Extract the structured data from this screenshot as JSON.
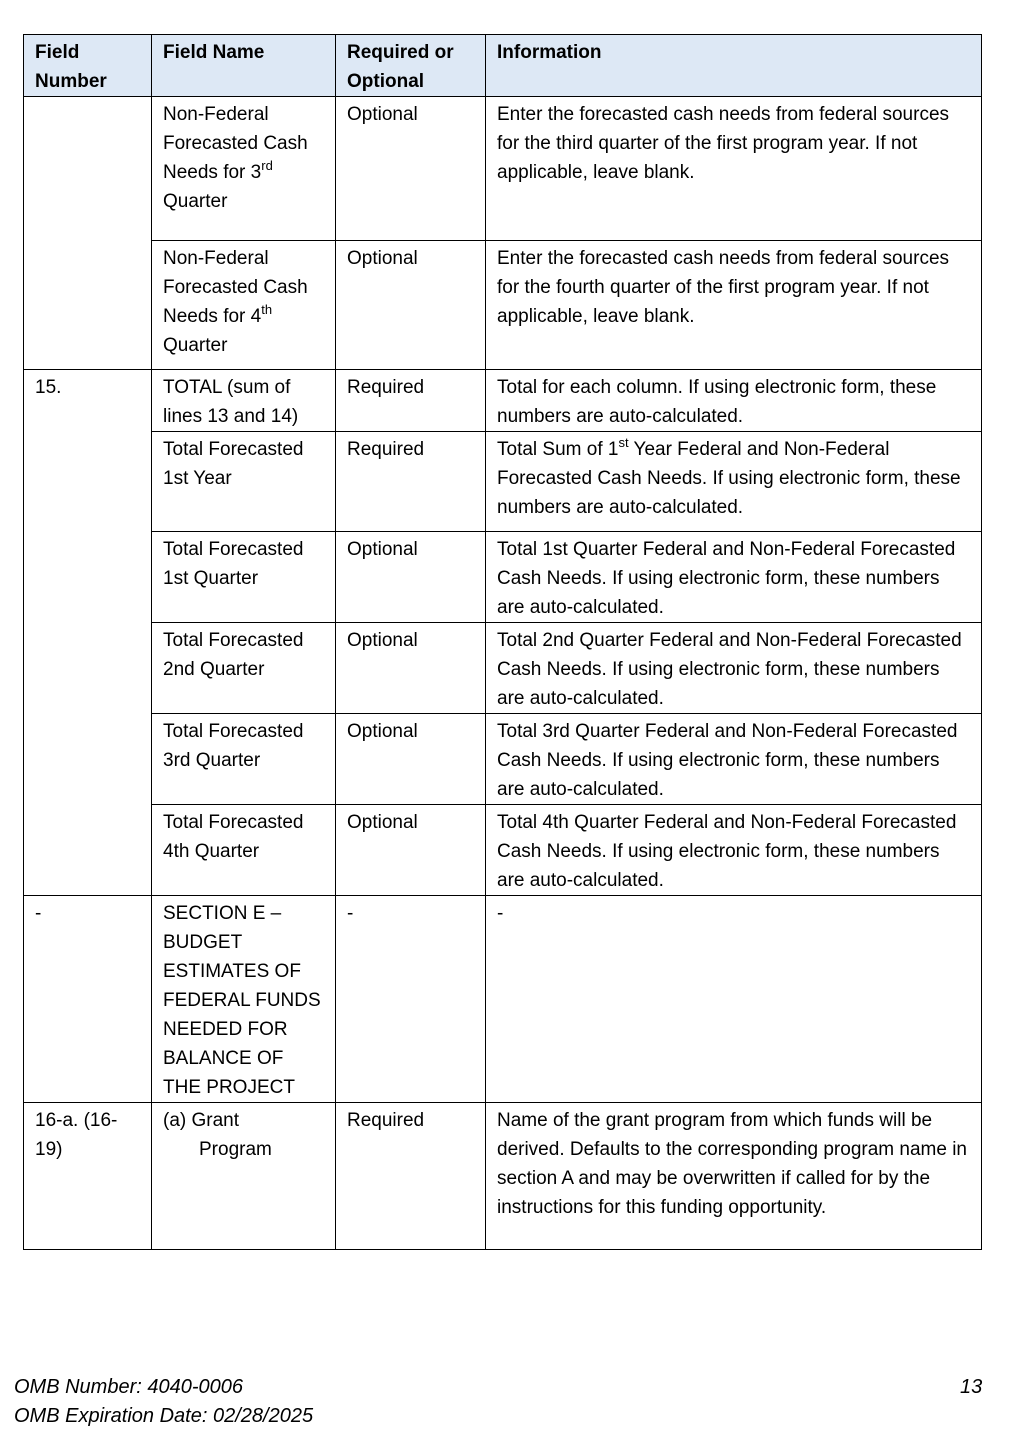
{
  "header": {
    "field_number": "Field Number",
    "field_name": "Field Name",
    "required": "Required or Optional",
    "information": "Information"
  },
  "rows": [
    {
      "name_pre": "Non-Federal Forecasted Cash Needs for 3",
      "name_sup": "rd",
      "name_post": "Quarter",
      "req": "Optional",
      "info": "Enter the forecasted cash needs from federal sources for the third quarter of the first program year. If not applicable, leave blank."
    },
    {
      "name_pre": "Non-Federal Forecasted Cash Needs for 4",
      "name_sup": "th",
      "name_post": "Quarter",
      "req": "Optional",
      "info": "Enter the forecasted cash needs from federal sources for the fourth quarter of the first program year. If not applicable, leave blank."
    },
    {
      "number": "15.",
      "name": "TOTAL (sum of lines 13 and 14)",
      "req": "Required",
      "info": "Total for each column. If using electronic form, these numbers are auto-calculated."
    },
    {
      "name": "Total Forecasted 1st Year",
      "req": "Required",
      "info_pre": "Total Sum of 1",
      "info_sup": "st",
      "info_post": " Year Federal and Non-Federal Forecasted Cash Needs. If using electronic form, these numbers are auto-calculated."
    },
    {
      "name": "Total Forecasted 1st Quarter",
      "req": "Optional",
      "info": "Total 1st Quarter Federal and Non-Federal Forecasted Cash Needs. If using electronic form, these numbers are auto-calculated."
    },
    {
      "name": "Total Forecasted 2nd Quarter",
      "req": "Optional",
      "info": "Total 2nd Quarter Federal and Non-Federal Forecasted Cash Needs. If using electronic form, these numbers are auto-calculated."
    },
    {
      "name": "Total Forecasted 3rd Quarter",
      "req": "Optional",
      "info": "Total 3rd Quarter Federal and Non-Federal Forecasted Cash Needs. If using electronic form, these numbers are auto-calculated."
    },
    {
      "name": "Total Forecasted 4th Quarter",
      "req": "Optional",
      "info": "Total 4th Quarter Federal and Non-Federal Forecasted Cash Needs. If using electronic form, these numbers are auto-calculated."
    },
    {
      "number": "-",
      "name": "SECTION E – BUDGET ESTIMATES OF FEDERAL FUNDS NEEDED FOR BALANCE OF THE PROJECT",
      "req": "-",
      "info": "-"
    },
    {
      "number": "16-a. (16-19)",
      "name_line1": "(a) Grant",
      "name_line2": "Program",
      "req": "Required",
      "info": "Name of the grant program from which funds will be derived. Defaults to the corresponding program name in section A and may be overwritten if called for by the instructions for this funding opportunity."
    }
  ],
  "footer": {
    "omb_number": "OMB Number: 4040-0006",
    "omb_expiration": "OMB Expiration Date: 02/28/2025",
    "page_number": "13"
  }
}
